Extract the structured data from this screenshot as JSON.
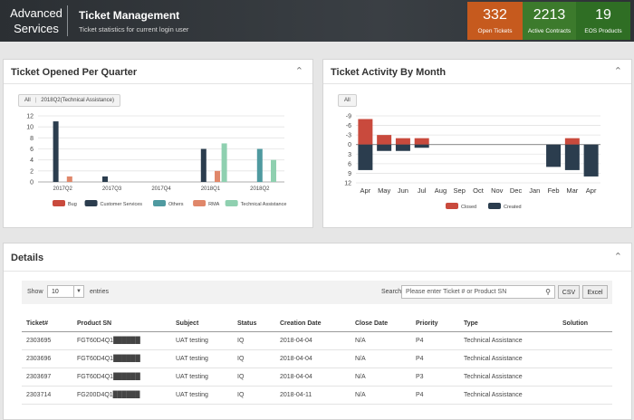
{
  "header": {
    "brand": "Advanced Services",
    "title": "Ticket Management",
    "subtitle": "Ticket statistics for current login user",
    "stats": [
      {
        "value": "332",
        "label": "Open Tickets",
        "color": "#c65a1e"
      },
      {
        "value": "2213",
        "label": "Active Contracts",
        "color": "#3c7a2c"
      },
      {
        "value": "19",
        "label": "EOS Products",
        "color": "#2f6e24"
      }
    ]
  },
  "quarter_panel": {
    "title": "Ticket Opened Per Quarter",
    "filter": {
      "all": "All",
      "active": "2018Q2(Technical Assistance)"
    }
  },
  "month_panel": {
    "title": "Ticket Activity By Month",
    "filter": {
      "all": "All"
    }
  },
  "details": {
    "title": "Details",
    "show_label": "Show",
    "entries_value": "10",
    "entries_label": "entries",
    "search_label": "Search",
    "search_placeholder": "Please enter Ticket # or Product SN",
    "csv_label": "CSV",
    "excel_label": "Excel",
    "columns": [
      "Ticket#",
      "Product SN",
      "Subject",
      "Status",
      "Creation Date",
      "Close Date",
      "Priority",
      "Type",
      "Solution"
    ],
    "rows": [
      [
        "2303695",
        "FGT60D4Q1██████",
        "UAT testing",
        "IQ",
        "2018-04-04",
        "N/A",
        "P4",
        "Technical Assistance",
        ""
      ],
      [
        "2303696",
        "FGT60D4Q1██████",
        "UAT testing",
        "IQ",
        "2018-04-04",
        "N/A",
        "P4",
        "Technical Assistance",
        ""
      ],
      [
        "2303697",
        "FGT60D4Q1██████",
        "UAT testing",
        "IQ",
        "2018-04-04",
        "N/A",
        "P3",
        "Technical Assistance",
        ""
      ],
      [
        "2303714",
        "FG200D4Q1██████",
        "UAT testing",
        "IQ",
        "2018-04-11",
        "N/A",
        "P4",
        "Technical Assistance",
        ""
      ]
    ]
  },
  "chart_data": [
    {
      "type": "bar",
      "title": "Ticket Opened Per Quarter",
      "categories": [
        "2017Q2",
        "2017Q3",
        "2017Q4",
        "2018Q1",
        "2018Q2"
      ],
      "ylim": [
        0,
        12
      ],
      "yticks": [
        0,
        2,
        4,
        6,
        8,
        10,
        12
      ],
      "grid": true,
      "legend_position": "bottom",
      "series": [
        {
          "name": "Bug",
          "color": "#c94a3d",
          "values": [
            0,
            0,
            0,
            0,
            0
          ]
        },
        {
          "name": "Customer Services",
          "color": "#2b3d4e",
          "values": [
            11,
            1,
            0,
            6,
            0
          ]
        },
        {
          "name": "Others",
          "color": "#4f9aa0",
          "values": [
            0,
            0,
            0,
            0,
            6
          ]
        },
        {
          "name": "RMA",
          "color": "#e0876a",
          "values": [
            1,
            0,
            0,
            2,
            0
          ]
        },
        {
          "name": "Technical Assistance",
          "color": "#8fd0b0",
          "values": [
            0,
            0,
            0,
            7,
            4
          ]
        }
      ]
    },
    {
      "type": "bar",
      "title": "Ticket Activity By Month",
      "categories": [
        "Apr",
        "May",
        "Jun",
        "Jul",
        "Aug",
        "Sep",
        "Oct",
        "Nov",
        "Dec",
        "Jan",
        "Feb",
        "Mar",
        "Apr"
      ],
      "ylim": [
        -9,
        12
      ],
      "yticks": [
        -9,
        -6,
        -3,
        0,
        3,
        6,
        9,
        12
      ],
      "ytick_labels": [
        "-9",
        "-6",
        "-3",
        "0",
        "3",
        "6",
        "9",
        "12"
      ],
      "grid": true,
      "legend_position": "bottom",
      "series": [
        {
          "name": "Closed",
          "color": "#c94a3d",
          "values": [
            -8,
            -3,
            -2,
            -2,
            0,
            0,
            0,
            0,
            0,
            0,
            0,
            -2,
            0
          ]
        },
        {
          "name": "Created",
          "color": "#2b3d4e",
          "values": [
            8,
            2,
            2,
            1,
            0,
            0,
            0,
            0,
            0,
            0,
            7,
            8,
            10
          ]
        }
      ]
    }
  ]
}
